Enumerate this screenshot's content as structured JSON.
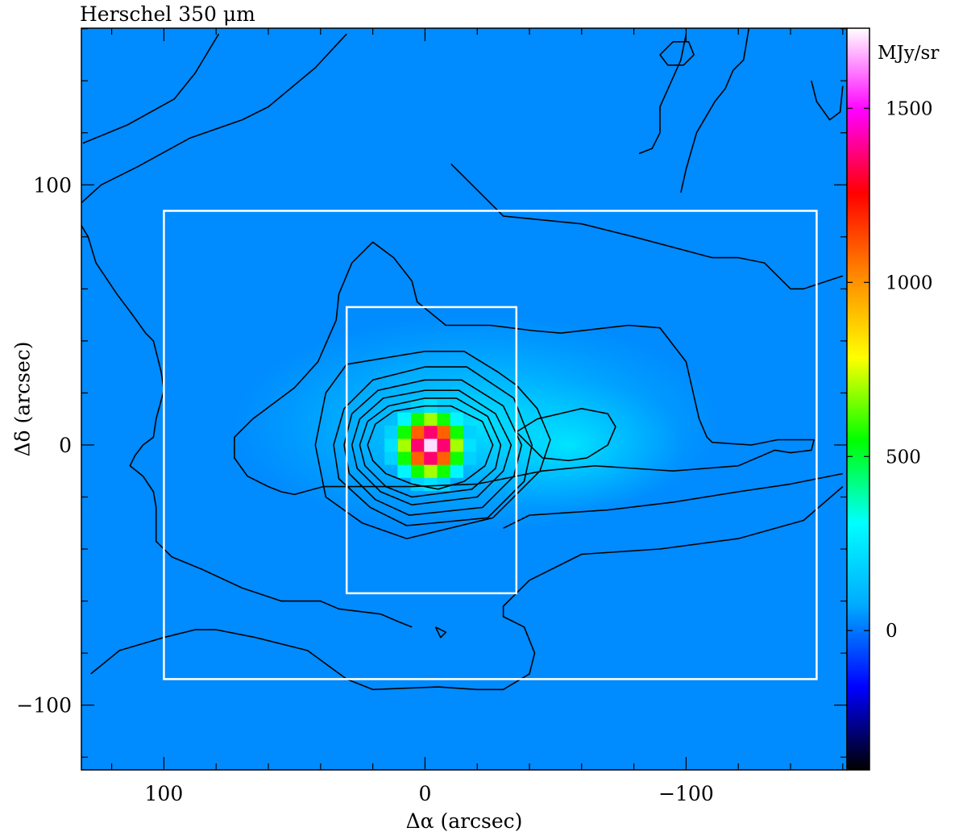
{
  "chart_data": {
    "type": "heatmap",
    "title": "Herschel 350 μm",
    "xlabel": "Δα (arcsec)",
    "ylabel": "Δδ (arcsec)",
    "xlim": [
      131.6,
      -161.6
    ],
    "ylim": [
      -124.9,
      160.2
    ],
    "x_ticks": [
      {
        "value": 100,
        "label": "100"
      },
      {
        "value": 0,
        "label": "0"
      },
      {
        "value": -100,
        "label": "−100"
      }
    ],
    "y_ticks": [
      {
        "value": 100,
        "label": "100"
      },
      {
        "value": 0,
        "label": "0"
      },
      {
        "value": -100,
        "label": "−100"
      }
    ],
    "colorbar": {
      "unit": "MJy/sr",
      "range": [
        -400,
        1730
      ],
      "ticks": [
        {
          "value": 1500,
          "label": "1500"
        },
        {
          "value": 1000,
          "label": "1000"
        },
        {
          "value": 500,
          "label": "500"
        },
        {
          "value": 0,
          "label": "0"
        }
      ],
      "colors": [
        "#000000",
        "#0000ff",
        "#00aaff",
        "#00ffff",
        "#00ff00",
        "#ffff00",
        "#ff8800",
        "#ff0000",
        "#ff00ff",
        "#ffffff"
      ]
    },
    "background_level": 30,
    "peak": {
      "x": -2,
      "y": 0,
      "value": 1700
    },
    "secondary_peak": {
      "x": -55,
      "y": 0,
      "value": 220
    },
    "boxes": [
      {
        "x": [
          100,
          -150
        ],
        "y": [
          -90,
          90
        ]
      },
      {
        "x": [
          30,
          -35
        ],
        "y": [
          -57,
          53
        ]
      }
    ],
    "contours": [
      [
        [
          131,
          116
        ],
        [
          114,
          123
        ],
        [
          96,
          133
        ],
        [
          88,
          143
        ],
        [
          79,
          158
        ]
      ],
      [
        [
          128,
          -88
        ],
        [
          117,
          -79
        ],
        [
          100,
          -74
        ],
        [
          88,
          -71
        ],
        [
          80,
          -71
        ],
        [
          65,
          -74
        ],
        [
          45,
          -79
        ],
        [
          30,
          -90
        ],
        [
          20,
          -94
        ],
        [
          -5,
          -93
        ],
        [
          -20,
          -94
        ],
        [
          -30,
          -94
        ],
        [
          -40,
          -88
        ],
        [
          -42,
          -80
        ],
        [
          -38,
          -70
        ],
        [
          -30,
          -66
        ],
        [
          -30,
          -62
        ],
        [
          -40,
          -52
        ],
        [
          -60,
          -42
        ],
        [
          -90,
          -40
        ],
        [
          -120,
          -36
        ],
        [
          -145,
          -29
        ],
        [
          -160,
          -16
        ]
      ],
      [
        [
          126,
          70
        ],
        [
          129,
          80
        ],
        [
          135,
          90
        ],
        [
          124,
          100
        ],
        [
          110,
          107
        ],
        [
          90,
          118
        ],
        [
          70,
          125
        ],
        [
          60,
          130
        ],
        [
          42,
          145
        ],
        [
          30,
          158
        ]
      ],
      [
        [
          -10,
          108
        ],
        [
          -30,
          88
        ],
        [
          -60,
          85
        ],
        [
          -80,
          80
        ],
        [
          -110,
          72
        ],
        [
          -120,
          72
        ],
        [
          -130,
          70
        ],
        [
          -140,
          60
        ],
        [
          -145,
          60
        ],
        [
          -160,
          65
        ]
      ],
      [
        [
          126,
          70
        ],
        [
          118,
          58
        ],
        [
          112,
          50
        ],
        [
          107,
          43
        ],
        [
          104,
          40
        ],
        [
          101,
          28
        ],
        [
          100,
          21
        ],
        [
          103,
          10
        ],
        [
          104,
          3
        ],
        [
          108,
          0
        ],
        [
          111,
          -4
        ],
        [
          113,
          -8
        ],
        [
          108,
          -12
        ],
        [
          104,
          -18
        ],
        [
          103,
          -24
        ],
        [
          103,
          -37
        ],
        [
          97,
          -43
        ],
        [
          85,
          -48
        ],
        [
          70,
          -55
        ],
        [
          55,
          -60
        ],
        [
          40,
          -60
        ],
        [
          33,
          -63
        ],
        [
          17,
          -65
        ],
        [
          10,
          -68
        ],
        [
          5,
          -70
        ]
      ],
      [
        [
          60,
          -16
        ],
        [
          68,
          -12
        ],
        [
          73,
          -5
        ],
        [
          73,
          3
        ],
        [
          66,
          10
        ],
        [
          50,
          22
        ],
        [
          41,
          32
        ],
        [
          34,
          48
        ],
        [
          33,
          58
        ],
        [
          28,
          70
        ],
        [
          23,
          75
        ],
        [
          20,
          78
        ],
        [
          12,
          72
        ],
        [
          5,
          63
        ],
        [
          3,
          55
        ],
        [
          -8,
          46
        ],
        [
          -25,
          46
        ],
        [
          -41,
          44
        ],
        [
          -52,
          43
        ],
        [
          -78,
          46
        ],
        [
          -90,
          45
        ],
        [
          -100,
          32
        ],
        [
          -105,
          10
        ],
        [
          -108,
          3
        ],
        [
          -110,
          1
        ],
        [
          -125,
          0
        ],
        [
          -135,
          2
        ],
        [
          -145,
          2
        ],
        [
          -149,
          2
        ],
        [
          -148,
          -2
        ],
        [
          -140,
          -3
        ],
        [
          -134,
          -2
        ],
        [
          -120,
          -8
        ],
        [
          -95,
          -10
        ],
        [
          -80,
          -9
        ],
        [
          -65,
          -8
        ],
        [
          -45,
          -10
        ],
        [
          -20,
          -15
        ],
        [
          5,
          -16
        ],
        [
          25,
          -16
        ],
        [
          39,
          -16
        ],
        [
          50,
          -19
        ],
        [
          55,
          -18
        ],
        [
          60,
          -16
        ]
      ],
      [
        [
          -30,
          -32
        ],
        [
          -40,
          -27
        ],
        [
          -70,
          -25
        ],
        [
          -95,
          -22
        ],
        [
          -120,
          -18
        ],
        [
          -140,
          -15
        ],
        [
          -160,
          -11
        ]
      ],
      [
        [
          -35,
          5
        ],
        [
          -43,
          10
        ],
        [
          -60,
          14
        ],
        [
          -70,
          12
        ],
        [
          -73,
          7
        ],
        [
          -70,
          0
        ],
        [
          -62,
          -5
        ],
        [
          -55,
          -6
        ],
        [
          -45,
          -5
        ],
        [
          -35,
          5
        ]
      ],
      [
        [
          -5,
          -17
        ],
        [
          5,
          -15
        ],
        [
          15,
          -11
        ],
        [
          20,
          -6
        ],
        [
          22,
          0
        ],
        [
          19,
          8
        ],
        [
          12,
          13
        ],
        [
          0,
          15
        ],
        [
          -10,
          15
        ],
        [
          -22,
          9
        ],
        [
          -26,
          0
        ],
        [
          -23,
          -8
        ],
        [
          -15,
          -14
        ],
        [
          -5,
          -17
        ]
      ],
      [
        [
          5,
          -20
        ],
        [
          15,
          -16
        ],
        [
          23,
          -8
        ],
        [
          25,
          0
        ],
        [
          22,
          9
        ],
        [
          14,
          15
        ],
        [
          0,
          18
        ],
        [
          -12,
          18
        ],
        [
          -24,
          11
        ],
        [
          -29,
          0
        ],
        [
          -27,
          -9
        ],
        [
          -18,
          -17
        ],
        [
          5,
          -20
        ]
      ],
      [
        [
          5,
          -23
        ],
        [
          17,
          -18
        ],
        [
          26,
          -9
        ],
        [
          28,
          0
        ],
        [
          25,
          10
        ],
        [
          16,
          18
        ],
        [
          0,
          21
        ],
        [
          -13,
          21
        ],
        [
          -27,
          12
        ],
        [
          -33,
          0
        ],
        [
          -30,
          -10
        ],
        [
          -20,
          -20
        ],
        [
          5,
          -23
        ]
      ],
      [
        [
          6,
          -27
        ],
        [
          19,
          -21
        ],
        [
          29,
          -11
        ],
        [
          31,
          0
        ],
        [
          28,
          12
        ],
        [
          18,
          21
        ],
        [
          0,
          25
        ],
        [
          -14,
          25
        ],
        [
          -30,
          15
        ],
        [
          -37,
          0
        ],
        [
          -34,
          -12
        ],
        [
          -22,
          -24
        ],
        [
          6,
          -27
        ]
      ],
      [
        [
          7,
          -31
        ],
        [
          21,
          -24
        ],
        [
          33,
          -13
        ],
        [
          35,
          0
        ],
        [
          31,
          14
        ],
        [
          20,
          25
        ],
        [
          0,
          30
        ],
        [
          -16,
          30
        ],
        [
          -34,
          18
        ],
        [
          -41,
          0
        ],
        [
          -38,
          -14
        ],
        [
          -24,
          -28
        ],
        [
          7,
          -31
        ]
      ],
      [
        [
          7,
          -36
        ],
        [
          24,
          -30
        ],
        [
          38,
          -20
        ],
        [
          42,
          0
        ],
        [
          38,
          20
        ],
        [
          30,
          31
        ],
        [
          0,
          36
        ],
        [
          -15,
          36
        ],
        [
          -28,
          28
        ],
        [
          -35,
          23
        ],
        [
          -43,
          14
        ],
        [
          -48,
          2
        ],
        [
          -44,
          -10
        ],
        [
          -34,
          -20
        ],
        [
          -26,
          -28
        ],
        [
          7,
          -36
        ]
      ],
      [
        [
          -82,
          112
        ],
        [
          -87,
          114
        ],
        [
          -90,
          120
        ],
        [
          -90,
          130
        ],
        [
          -98,
          148
        ],
        [
          -100,
          158
        ]
      ],
      [
        [
          -124,
          160
        ],
        [
          -122,
          148
        ],
        [
          -118,
          144
        ],
        [
          -115,
          137
        ],
        [
          -111,
          132
        ],
        [
          -104,
          120
        ],
        [
          -100,
          106
        ],
        [
          -98,
          97
        ]
      ],
      [
        [
          -148,
          140
        ],
        [
          -150,
          132
        ],
        [
          -155,
          125
        ],
        [
          -159,
          128
        ],
        [
          -160,
          138
        ]
      ],
      [
        [
          -95,
          155
        ],
        [
          -90,
          150
        ],
        [
          -93,
          146
        ],
        [
          -99,
          146
        ],
        [
          -103,
          150
        ],
        [
          -101,
          155
        ],
        [
          -95,
          155
        ]
      ],
      [
        [
          -4,
          -70
        ],
        [
          -8,
          -72
        ],
        [
          -6,
          -74
        ],
        [
          -4,
          -70
        ]
      ]
    ]
  }
}
